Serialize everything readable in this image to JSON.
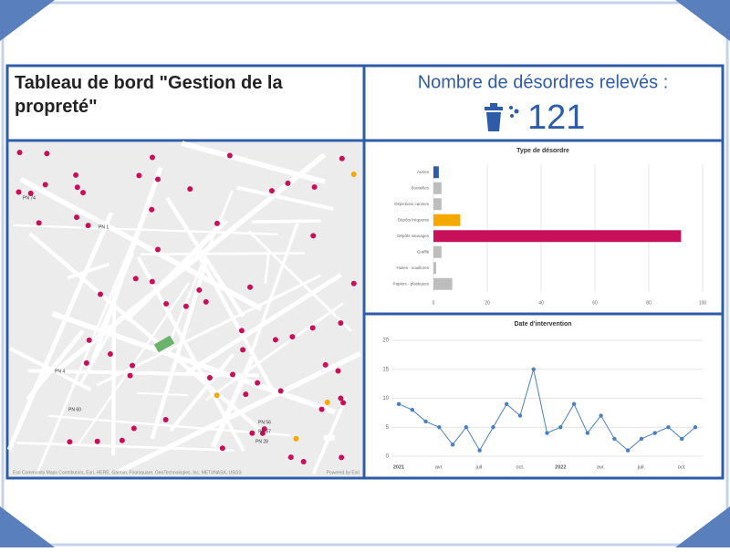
{
  "header": {
    "title": "Tableau de bord \"Gestion de la propreté\""
  },
  "indicator": {
    "label": "Nombre de désordres relevés :",
    "value": 121
  },
  "map": {
    "labels": [
      "PN 74",
      "PN 1",
      "PN 4",
      "PN 60",
      "PN 56",
      "PN 57",
      "PN 28"
    ],
    "attribution": "Esri Community Maps Contributors, Esri, HERE, Garmin, Foursquare, GeoTechnologies, Inc, METI/NASA, USGS",
    "powered": "Powered by Esri"
  },
  "chart_data": [
    {
      "type": "hbar",
      "title": "Type de désordre",
      "categories": [
        "Autres",
        "Bouteilles",
        "Déjections canines",
        "Dépôts fréquents",
        "Dépôts sauvages",
        "Graffiti",
        "Huiles - souillures",
        "Papiers - plastiques"
      ],
      "values": [
        2,
        3,
        3,
        10,
        92,
        3,
        1,
        7
      ],
      "colors": [
        "#2e5ca8",
        "#bdbdbd",
        "#bdbdbd",
        "#f5a800",
        "#c8105a",
        "#bdbdbd",
        "#bdbdbd",
        "#bdbdbd"
      ],
      "xlim": [
        0,
        100
      ],
      "xticks": [
        0,
        20,
        40,
        60,
        80,
        100
      ],
      "grid": true
    },
    {
      "type": "line",
      "title": "Date d'intervention",
      "categories": [
        "2021",
        null,
        null,
        "avr.",
        null,
        null,
        "juil.",
        null,
        null,
        "oct.",
        null,
        null,
        "2022",
        null,
        null,
        "avr.",
        null,
        null,
        "juil.",
        null,
        null,
        "oct.",
        null
      ],
      "values": [
        9,
        8,
        6,
        5,
        2,
        5,
        1,
        5,
        9,
        7,
        15,
        4,
        5,
        9,
        4,
        7,
        3,
        1,
        3,
        4,
        5,
        3,
        5
      ],
      "color": "#4a7fc1",
      "ylim": [
        0,
        20
      ],
      "yticks": [
        0,
        5,
        10,
        15,
        20
      ],
      "grid": true
    }
  ]
}
